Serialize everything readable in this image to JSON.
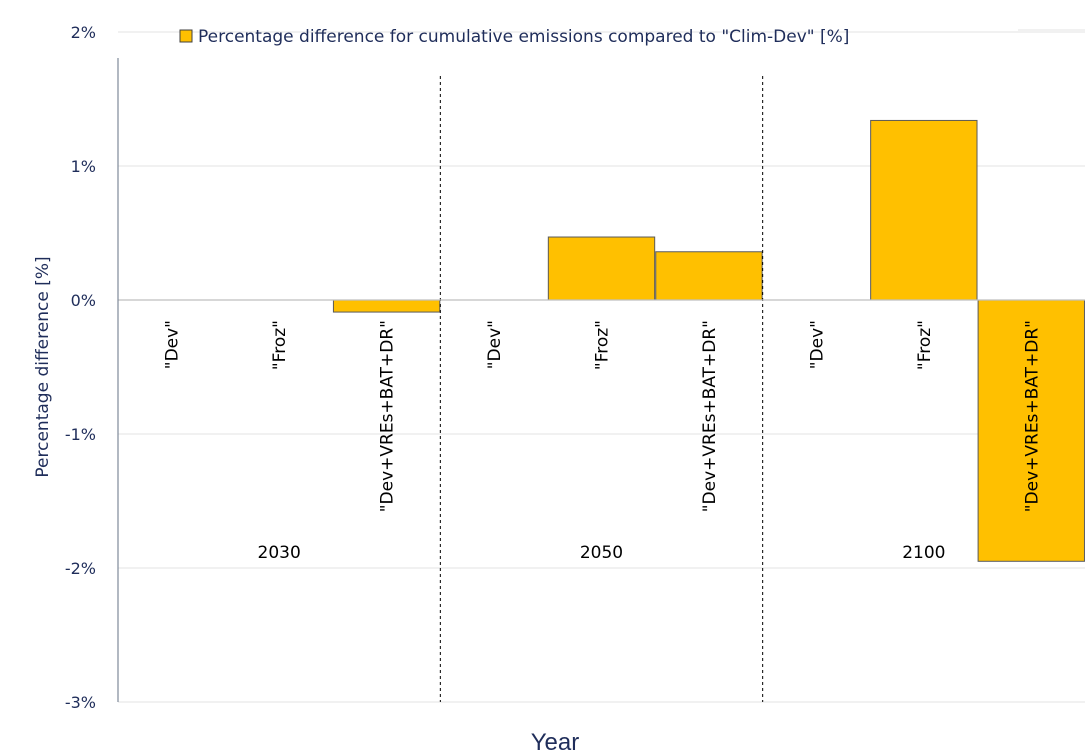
{
  "chart_data": {
    "type": "bar",
    "title": "",
    "xlabel": "Year",
    "ylabel": "Percentage difference [%]",
    "ylim": [
      -3,
      2
    ],
    "yticks": [
      "-3%",
      "-2%",
      "-1%",
      "0%",
      "1%",
      "2%"
    ],
    "ytick_values": [
      -3,
      -2,
      -1,
      0,
      1,
      2
    ],
    "grid": true,
    "legend": "top",
    "color": "#ffc000",
    "series": [
      {
        "name": "Percentage difference for cumulative emissions compared to \"Clim-Dev\" [%]",
        "groups": [
          {
            "label": "2030",
            "categories": [
              "\"Dev\"",
              "\"Froz\"",
              "\"Dev+VREs+BAT+DR\""
            ],
            "values": [
              0,
              0,
              -0.09
            ]
          },
          {
            "label": "2050",
            "categories": [
              "\"Dev\"",
              "\"Froz\"",
              "\"Dev+VREs+BAT+DR\""
            ],
            "values": [
              0,
              0.47,
              0.36
            ]
          },
          {
            "label": "2100",
            "categories": [
              "\"Dev\"",
              "\"Froz\"",
              "\"Dev+VREs+BAT+DR\""
            ],
            "values": [
              0,
              1.34,
              -1.95
            ]
          }
        ]
      }
    ]
  }
}
